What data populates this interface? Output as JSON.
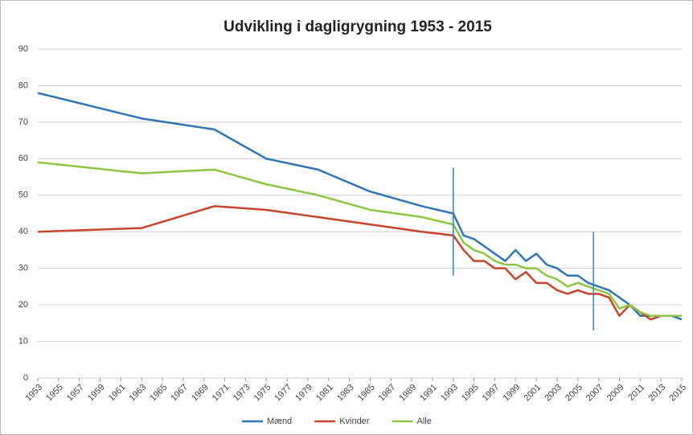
{
  "chart_data": {
    "type": "line",
    "title": "Udvikling i dagligrygning 1953 - 2015",
    "x": [
      1953,
      1963,
      1970,
      1975,
      1980,
      1985,
      1990,
      1993,
      1994,
      1995,
      1996,
      1997,
      1998,
      1999,
      2000,
      2001,
      2002,
      2003,
      2004,
      2005,
      2006,
      2007,
      2008,
      2009,
      2010,
      2011,
      2012,
      2013,
      2014,
      2015
    ],
    "series": [
      {
        "name": "Mænd",
        "color": "#2e75b6",
        "values": [
          78,
          71,
          68,
          60,
          57,
          51,
          47,
          45,
          39,
          38,
          36,
          34,
          32,
          35,
          32,
          34,
          31,
          30,
          28,
          28,
          26,
          25,
          24,
          22,
          20,
          17,
          17,
          17,
          17,
          16
        ]
      },
      {
        "name": "Kvinder",
        "color": "#c9442b",
        "values": [
          40,
          41,
          47,
          46,
          44,
          42,
          40,
          39,
          35,
          32,
          32,
          30,
          30,
          27,
          29,
          26,
          26,
          24,
          23,
          24,
          23,
          23,
          22,
          17,
          20,
          18,
          16,
          17,
          17,
          17
        ]
      },
      {
        "name": "Alle",
        "color": "#8dc63f",
        "values": [
          59,
          56,
          57,
          53,
          50,
          46,
          44,
          42,
          37,
          35,
          34,
          32,
          31,
          31,
          30,
          30,
          28,
          27,
          25,
          26,
          25,
          24,
          23,
          19,
          20,
          18,
          17,
          17,
          17,
          17
        ]
      }
    ],
    "vertical_markers": [
      {
        "x": 1993,
        "y": [
          28,
          57.5
        ]
      },
      {
        "x": 2006.5,
        "y": [
          13,
          40
        ]
      }
    ],
    "xlim": [
      1953,
      2015
    ],
    "xticks": [
      1953,
      1955,
      1957,
      1959,
      1961,
      1963,
      1965,
      1967,
      1969,
      1971,
      1973,
      1975,
      1977,
      1979,
      1981,
      1983,
      1985,
      1987,
      1989,
      1991,
      1993,
      1995,
      1997,
      1999,
      2001,
      2003,
      2005,
      2007,
      2009,
      2011,
      2013,
      2015
    ],
    "ylim": [
      0,
      90
    ],
    "yticks": [
      0,
      10,
      20,
      30,
      40,
      50,
      60,
      70,
      80,
      90
    ],
    "grid": true,
    "legend": "bottom"
  }
}
